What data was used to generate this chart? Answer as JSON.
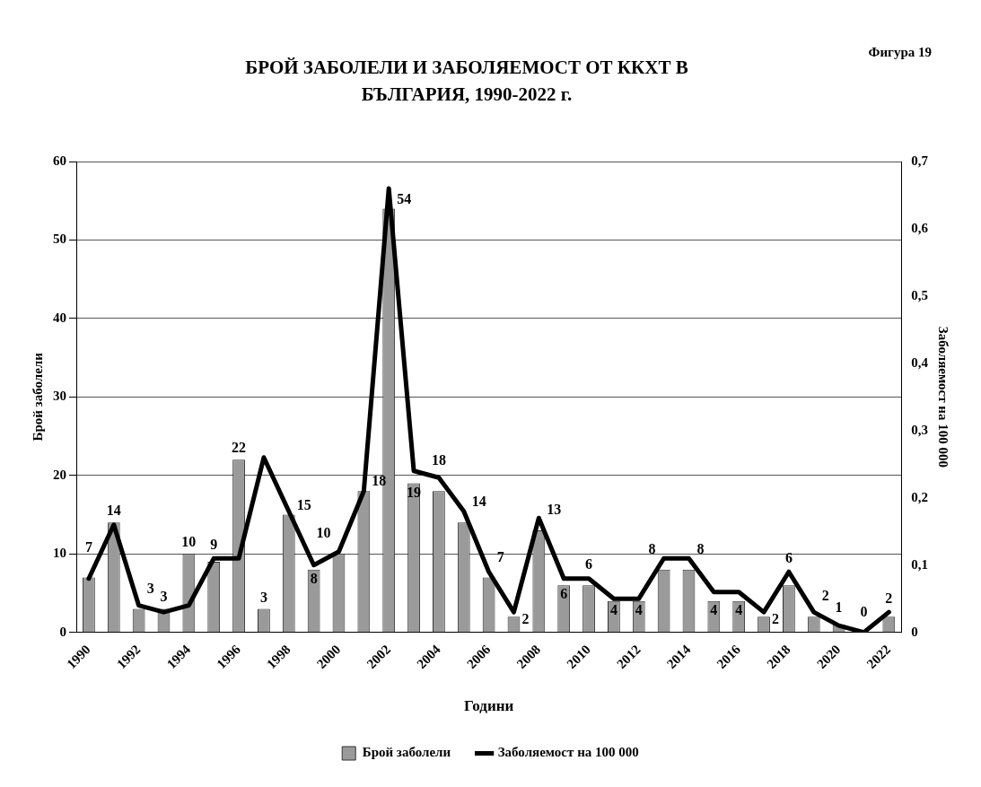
{
  "chart_data": {
    "type": "bar",
    "title": "БРОЙ ЗАБОЛЕЛИ И ЗАБОЛЯЕМОСТ ОТ ККХТ В БЪЛГАРИЯ, 1990-2022 г.",
    "annotations": [
      "Фигура 19"
    ],
    "xlabel": "Години",
    "ylabel": "Брой заболели",
    "y2label": "Заболяемост на 100 000",
    "categories": [
      "1990",
      null,
      "1992",
      null,
      "1994",
      null,
      "1996",
      null,
      "1998",
      null,
      "2000",
      null,
      "2002",
      null,
      "2004",
      null,
      "2006",
      null,
      "2008",
      null,
      "2010",
      null,
      "2012",
      null,
      "2014",
      null,
      "2016",
      null,
      "2018",
      null,
      "2020",
      null,
      "2022"
    ],
    "series": [
      {
        "name": "Брой заболели",
        "color": "#9a9a9a",
        "values": [
          7,
          14,
          3,
          3,
          10,
          9,
          22,
          3,
          15,
          8,
          10,
          18,
          54,
          19,
          18,
          14,
          7,
          2,
          13,
          6,
          6,
          4,
          4,
          8,
          8,
          4,
          4,
          2,
          6,
          2,
          1,
          0,
          2
        ],
        "value_labels": [
          "7",
          "14",
          "3",
          "3",
          "10",
          "9",
          "22",
          "3",
          "15",
          "8",
          "10",
          "18",
          "54",
          "19",
          "18",
          "14",
          "7",
          "2",
          "13",
          "6",
          "6",
          "4",
          "4",
          "8",
          "8",
          "4",
          "4",
          "2",
          "6",
          "2",
          "1",
          "0",
          "2"
        ]
      },
      {
        "name": "Заболяемост на 100 000",
        "type": "line",
        "axis": "y2",
        "color": "#000000",
        "values": [
          0.08,
          0.16,
          0.04,
          0.03,
          0.04,
          0.11,
          0.11,
          0.26,
          0.18,
          0.1,
          0.12,
          0.21,
          0.66,
          0.24,
          0.23,
          0.18,
          0.09,
          0.03,
          0.17,
          0.08,
          0.08,
          0.05,
          0.05,
          0.11,
          0.11,
          0.06,
          0.06,
          0.03,
          0.09,
          0.03,
          0.01,
          0,
          0.03
        ]
      }
    ],
    "ylim": [
      0,
      60
    ],
    "yticks": [
      0,
      10,
      20,
      30,
      40,
      50,
      60
    ],
    "y2lim": [
      0,
      0.7
    ],
    "y2ticks": [
      {
        "value": 0,
        "label": "0"
      },
      {
        "value": 0.1,
        "label": "0,1"
      },
      {
        "value": 0.2,
        "label": "0,2"
      },
      {
        "value": 0.3,
        "label": "0,3"
      },
      {
        "value": 0.4,
        "label": "0,4"
      },
      {
        "value": 0.5,
        "label": "0,5"
      },
      {
        "value": 0.6,
        "label": "0,6"
      },
      {
        "value": 0.7,
        "label": "0,7"
      }
    ],
    "grid": "y",
    "legend": "bottom"
  }
}
